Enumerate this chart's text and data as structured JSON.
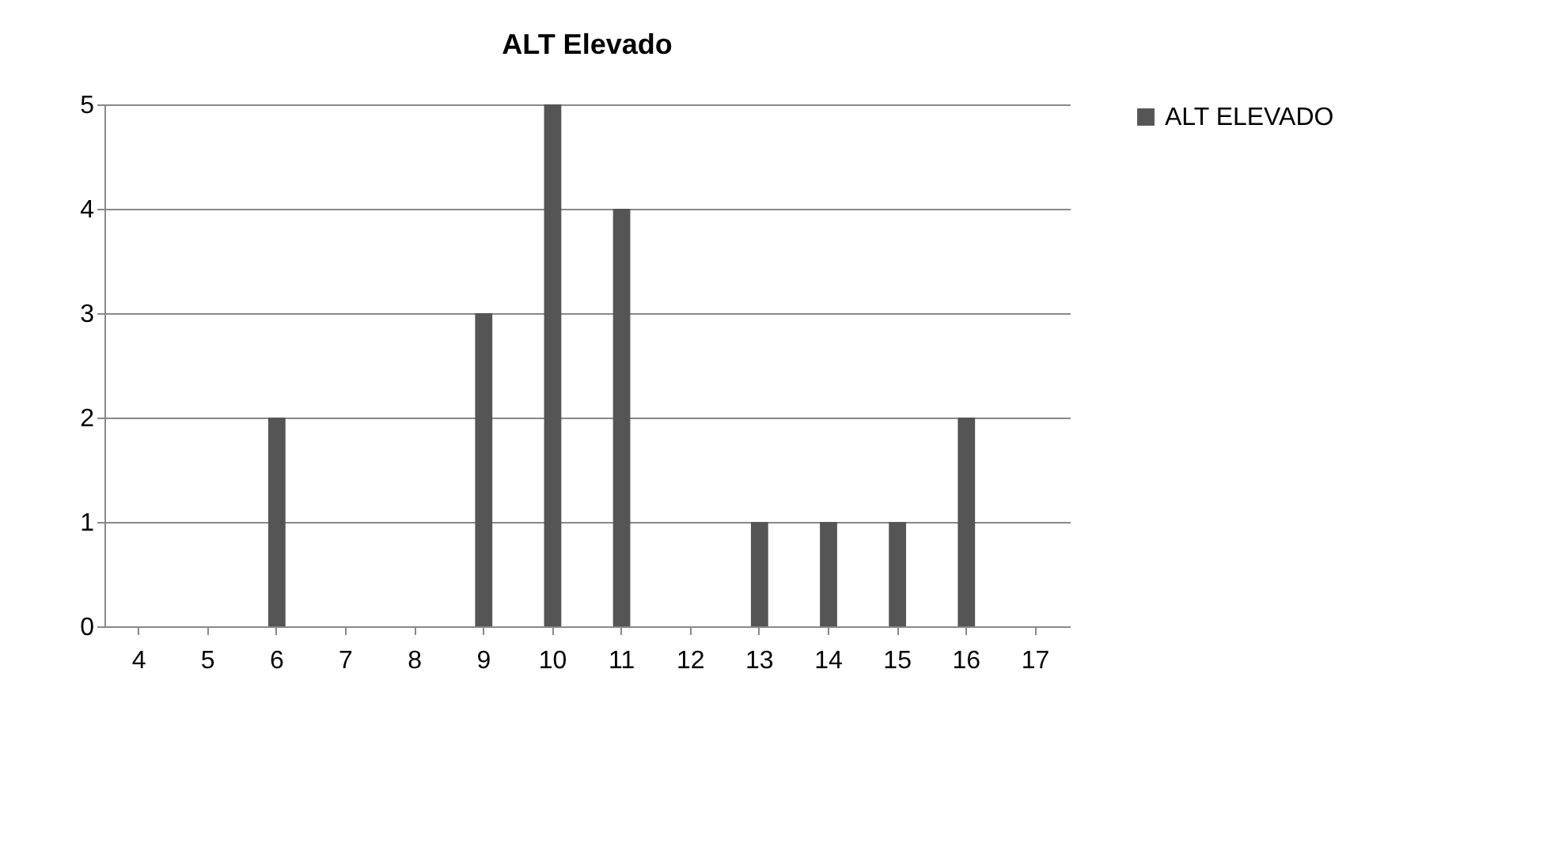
{
  "chart_data": {
    "type": "bar",
    "title": "ALT Elevado",
    "categories": [
      "4",
      "5",
      "6",
      "7",
      "8",
      "9",
      "10",
      "11",
      "12",
      "13",
      "14",
      "15",
      "16",
      "17"
    ],
    "series": [
      {
        "name": "ALT ELEVADO",
        "color": "#555555",
        "values": [
          0,
          0,
          2,
          0,
          0,
          3,
          5,
          4,
          0,
          1,
          1,
          1,
          2,
          0
        ]
      }
    ],
    "ylim": [
      0,
      5
    ],
    "yticks": [
      0,
      1,
      2,
      3,
      4,
      5
    ],
    "grid": "y",
    "legend": "right"
  }
}
